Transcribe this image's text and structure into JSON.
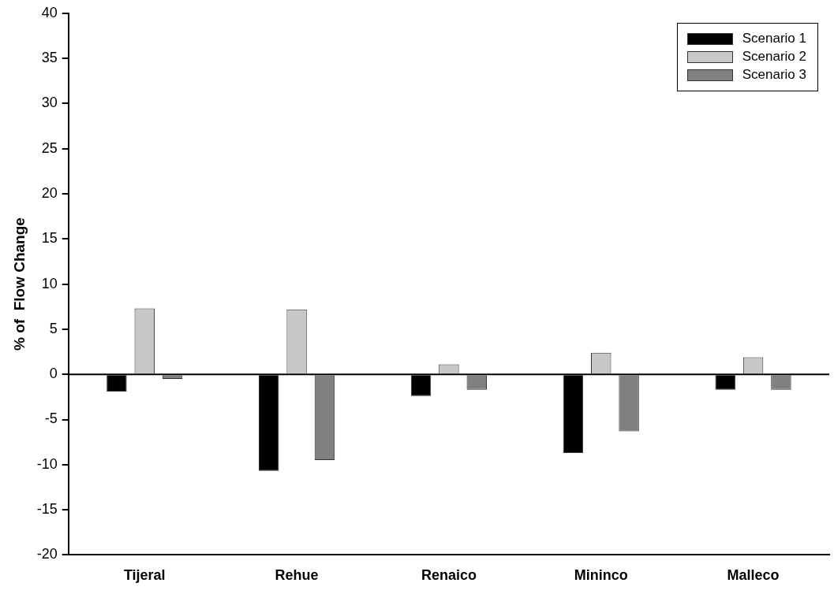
{
  "chart_data": {
    "type": "bar",
    "ylabel": "% of  Flow Change",
    "categories": [
      "Tijeral",
      "Rehue",
      "Renaico",
      "Mininco",
      "Malleco"
    ],
    "series": [
      {
        "name": "Scenario 1",
        "color": "#000000",
        "values": [
          -1.9,
          -10.7,
          -2.4,
          -8.7,
          -1.7
        ]
      },
      {
        "name": "Scenario 2",
        "color": "#c8c8c8",
        "values": [
          7.3,
          7.2,
          1.1,
          2.4,
          1.9
        ]
      },
      {
        "name": "Scenario 3",
        "color": "#808080",
        "values": [
          -0.5,
          -9.5,
          -1.7,
          -6.3,
          -1.7
        ]
      }
    ],
    "ylim": [
      -20,
      40
    ],
    "yticks": [
      -20,
      -15,
      -10,
      -5,
      0,
      5,
      10,
      15,
      20,
      25,
      30,
      35,
      40
    ],
    "ref_lines": [
      {
        "axis": "y",
        "value": 0
      }
    ],
    "grid": false,
    "legend": "top right"
  }
}
